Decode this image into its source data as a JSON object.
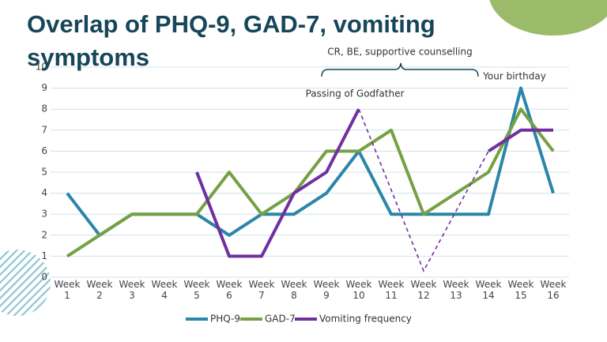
{
  "chart_data": {
    "type": "line",
    "title": "Overlap of PHQ-9, GAD-7, vomiting symptoms",
    "categories": [
      "Week 1",
      "Week 2",
      "Week 3",
      "Week 4",
      "Week 5",
      "Week 6",
      "Week 7",
      "Week 8",
      "Week 9",
      "Week 10",
      "Week 11",
      "Week 12",
      "Week 13",
      "Week 14",
      "Week 15",
      "Week 16"
    ],
    "series": [
      {
        "name": "PHQ-9",
        "color": "#2b86a8",
        "values": [
          4,
          2,
          3,
          3,
          3,
          2,
          3,
          3,
          4,
          6,
          3,
          3,
          3,
          3,
          9,
          4
        ]
      },
      {
        "name": "GAD-7",
        "color": "#76a043",
        "values": [
          1,
          2,
          3,
          3,
          3,
          5,
          3,
          4,
          6,
          6,
          7,
          3,
          4,
          5,
          8,
          6
        ]
      },
      {
        "name": "Vomiting frequency",
        "color": "#7030a0",
        "values": [
          null,
          null,
          null,
          null,
          5,
          1,
          1,
          4,
          5,
          8,
          null,
          null,
          null,
          6,
          7,
          7
        ],
        "gap_line": {
          "style": "dashed",
          "x": [
            10,
            12,
            14
          ],
          "values": [
            8,
            0.3,
            6
          ]
        }
      }
    ],
    "ylim": [
      0,
      10
    ],
    "yticks": [
      0,
      1,
      2,
      3,
      4,
      5,
      6,
      7,
      8,
      9,
      10
    ],
    "grid": true,
    "annotations": [
      "CR, BE, supportive counselling",
      "Passing of Godfather",
      "Your birthday"
    ],
    "legend": "bottom"
  }
}
